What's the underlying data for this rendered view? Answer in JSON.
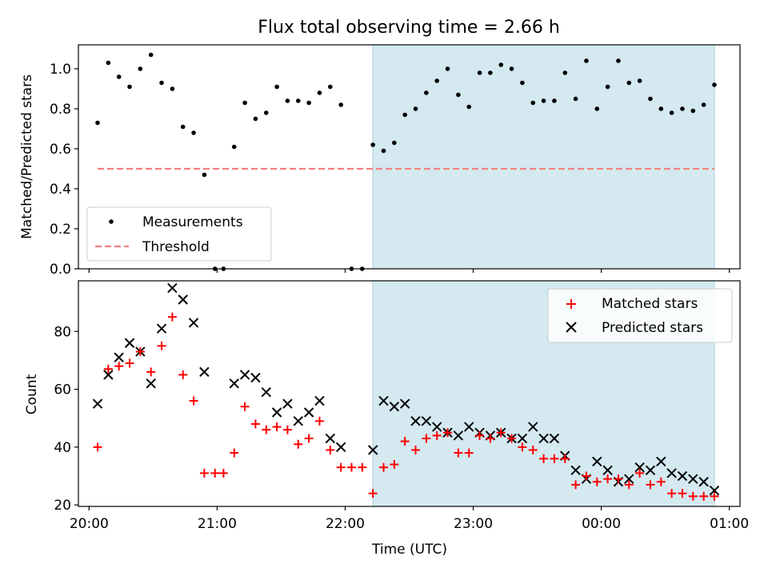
{
  "chart_data": [
    {
      "type": "scatter",
      "title": "Flux total observing time = 2.66 h",
      "xlabel": "",
      "ylabel": "Matched/Predicted stars",
      "xlim": [
        "19:55",
        "25:05"
      ],
      "ylim": [
        0.0,
        1.12
      ],
      "yticks": [
        0.0,
        0.2,
        0.4,
        0.6,
        0.8,
        1.0
      ],
      "ytick_labels": [
        "0.0",
        "0.2",
        "0.4",
        "0.6",
        "0.8",
        "1.0"
      ],
      "shaded_interval": [
        "22:13",
        "24:53"
      ],
      "shade_color": "#d4e9f0",
      "legend": {
        "placement": "lower-left",
        "entries": [
          "Measurements",
          "Threshold"
        ]
      },
      "threshold": {
        "name": "Threshold",
        "y": 0.5,
        "x_range": [
          "20:04",
          "24:53"
        ],
        "color": "#f28080"
      },
      "series": [
        {
          "name": "Measurements",
          "color": "#000000",
          "points": [
            [
              "20:04",
              0.73
            ],
            [
              "20:09",
              1.03
            ],
            [
              "20:14",
              0.96
            ],
            [
              "20:19",
              0.91
            ],
            [
              "20:24",
              1.0
            ],
            [
              "20:29",
              1.07
            ],
            [
              "20:34",
              0.93
            ],
            [
              "20:39",
              0.9
            ],
            [
              "20:44",
              0.71
            ],
            [
              "20:49",
              0.68
            ],
            [
              "20:54",
              0.47
            ],
            [
              "20:59",
              0.0
            ],
            [
              "21:03",
              0.0
            ],
            [
              "21:08",
              0.61
            ],
            [
              "21:13",
              0.83
            ],
            [
              "21:18",
              0.75
            ],
            [
              "21:23",
              0.78
            ],
            [
              "21:28",
              0.91
            ],
            [
              "21:33",
              0.84
            ],
            [
              "21:38",
              0.84
            ],
            [
              "21:43",
              0.83
            ],
            [
              "21:48",
              0.88
            ],
            [
              "21:53",
              0.91
            ],
            [
              "21:58",
              0.82
            ],
            [
              "22:03",
              0.0
            ],
            [
              "22:08",
              0.0
            ],
            [
              "22:13",
              0.62
            ],
            [
              "22:18",
              0.59
            ],
            [
              "22:23",
              0.63
            ],
            [
              "22:28",
              0.77
            ],
            [
              "22:33",
              0.8
            ],
            [
              "22:38",
              0.88
            ],
            [
              "22:43",
              0.94
            ],
            [
              "22:48",
              1.0
            ],
            [
              "22:53",
              0.87
            ],
            [
              "22:58",
              0.81
            ],
            [
              "23:03",
              0.98
            ],
            [
              "23:08",
              0.98
            ],
            [
              "23:13",
              1.02
            ],
            [
              "23:18",
              1.0
            ],
            [
              "23:23",
              0.93
            ],
            [
              "23:28",
              0.83
            ],
            [
              "23:33",
              0.84
            ],
            [
              "23:38",
              0.84
            ],
            [
              "23:43",
              0.98
            ],
            [
              "23:48",
              0.85
            ],
            [
              "23:53",
              1.04
            ],
            [
              "23:58",
              0.8
            ],
            [
              "24:03",
              0.91
            ],
            [
              "24:08",
              1.04
            ],
            [
              "24:13",
              0.93
            ],
            [
              "24:18",
              0.94
            ],
            [
              "24:23",
              0.85
            ],
            [
              "24:28",
              0.8
            ],
            [
              "24:33",
              0.78
            ],
            [
              "24:38",
              0.8
            ],
            [
              "24:43",
              0.79
            ],
            [
              "24:48",
              0.82
            ],
            [
              "24:53",
              0.92
            ]
          ]
        }
      ]
    },
    {
      "type": "scatter",
      "title": "",
      "xlabel": "Time (UTC)",
      "ylabel": "Count",
      "xlim": [
        "19:55",
        "25:05"
      ],
      "ylim": [
        19.5,
        97.5
      ],
      "yticks": [
        20,
        40,
        60,
        80
      ],
      "ytick_labels": [
        "20",
        "40",
        "60",
        "80"
      ],
      "xticks": [
        "20:00",
        "21:00",
        "22:00",
        "23:00",
        "24:00",
        "25:00"
      ],
      "xtick_labels": [
        "20:00",
        "21:00",
        "22:00",
        "23:00",
        "00:00",
        "01:00"
      ],
      "shaded_interval": [
        "22:13",
        "24:53"
      ],
      "shade_color": "#d4e9f0",
      "legend": {
        "placement": "top-right",
        "entries": [
          "Matched stars",
          "Predicted stars"
        ]
      },
      "series": [
        {
          "name": "Matched stars",
          "marker": "plus",
          "color": "#ff0000",
          "points": [
            [
              "20:04",
              40
            ],
            [
              "20:09",
              67
            ],
            [
              "20:14",
              68
            ],
            [
              "20:19",
              69
            ],
            [
              "20:24",
              73
            ],
            [
              "20:29",
              66
            ],
            [
              "20:34",
              75
            ],
            [
              "20:39",
              85
            ],
            [
              "20:44",
              65
            ],
            [
              "20:49",
              56
            ],
            [
              "20:54",
              31
            ],
            [
              "20:59",
              31
            ],
            [
              "21:03",
              31
            ],
            [
              "21:08",
              38
            ],
            [
              "21:13",
              54
            ],
            [
              "21:18",
              48
            ],
            [
              "21:23",
              46
            ],
            [
              "21:28",
              47
            ],
            [
              "21:33",
              46
            ],
            [
              "21:38",
              41
            ],
            [
              "21:43",
              43
            ],
            [
              "21:48",
              49
            ],
            [
              "21:53",
              39
            ],
            [
              "21:58",
              33
            ],
            [
              "22:03",
              33
            ],
            [
              "22:08",
              33
            ],
            [
              "22:13",
              24
            ],
            [
              "22:18",
              33
            ],
            [
              "22:23",
              34
            ],
            [
              "22:28",
              42
            ],
            [
              "22:33",
              39
            ],
            [
              "22:38",
              43
            ],
            [
              "22:43",
              44
            ],
            [
              "22:48",
              45
            ],
            [
              "22:53",
              38
            ],
            [
              "22:58",
              38
            ],
            [
              "23:03",
              44
            ],
            [
              "23:08",
              43
            ],
            [
              "23:13",
              45
            ],
            [
              "23:18",
              43
            ],
            [
              "23:23",
              40
            ],
            [
              "23:28",
              39
            ],
            [
              "23:33",
              36
            ],
            [
              "23:38",
              36
            ],
            [
              "23:43",
              36
            ],
            [
              "23:48",
              27
            ],
            [
              "23:53",
              30
            ],
            [
              "23:58",
              28
            ],
            [
              "24:03",
              29
            ],
            [
              "24:08",
              29
            ],
            [
              "24:13",
              27
            ],
            [
              "24:18",
              31
            ],
            [
              "24:23",
              27
            ],
            [
              "24:28",
              28
            ],
            [
              "24:33",
              24
            ],
            [
              "24:38",
              24
            ],
            [
              "24:43",
              23
            ],
            [
              "24:48",
              23
            ],
            [
              "24:53",
              23
            ]
          ]
        },
        {
          "name": "Predicted stars",
          "marker": "x",
          "color": "#000000",
          "points": [
            [
              "20:04",
              55
            ],
            [
              "20:09",
              65
            ],
            [
              "20:14",
              71
            ],
            [
              "20:19",
              76
            ],
            [
              "20:24",
              73
            ],
            [
              "20:29",
              62
            ],
            [
              "20:34",
              81
            ],
            [
              "20:39",
              95
            ],
            [
              "20:44",
              91
            ],
            [
              "20:49",
              83
            ],
            [
              "20:54",
              66
            ],
            [
              "21:08",
              62
            ],
            [
              "21:13",
              65
            ],
            [
              "21:18",
              64
            ],
            [
              "21:23",
              59
            ],
            [
              "21:28",
              52
            ],
            [
              "21:33",
              55
            ],
            [
              "21:38",
              49
            ],
            [
              "21:43",
              52
            ],
            [
              "21:48",
              56
            ],
            [
              "21:53",
              43
            ],
            [
              "21:58",
              40
            ],
            [
              "22:13",
              39
            ],
            [
              "22:18",
              56
            ],
            [
              "22:23",
              54
            ],
            [
              "22:28",
              55
            ],
            [
              "22:33",
              49
            ],
            [
              "22:38",
              49
            ],
            [
              "22:43",
              47
            ],
            [
              "22:48",
              45
            ],
            [
              "22:53",
              44
            ],
            [
              "22:58",
              47
            ],
            [
              "23:03",
              45
            ],
            [
              "23:08",
              44
            ],
            [
              "23:13",
              45
            ],
            [
              "23:18",
              43
            ],
            [
              "23:23",
              43
            ],
            [
              "23:28",
              47
            ],
            [
              "23:33",
              43
            ],
            [
              "23:38",
              43
            ],
            [
              "23:43",
              37
            ],
            [
              "23:48",
              32
            ],
            [
              "23:53",
              29
            ],
            [
              "23:58",
              35
            ],
            [
              "24:03",
              32
            ],
            [
              "24:08",
              28
            ],
            [
              "24:13",
              29
            ],
            [
              "24:18",
              33
            ],
            [
              "24:23",
              32
            ],
            [
              "24:28",
              35
            ],
            [
              "24:33",
              31
            ],
            [
              "24:38",
              30
            ],
            [
              "24:43",
              29
            ],
            [
              "24:48",
              28
            ],
            [
              "24:53",
              25
            ]
          ]
        }
      ]
    }
  ]
}
